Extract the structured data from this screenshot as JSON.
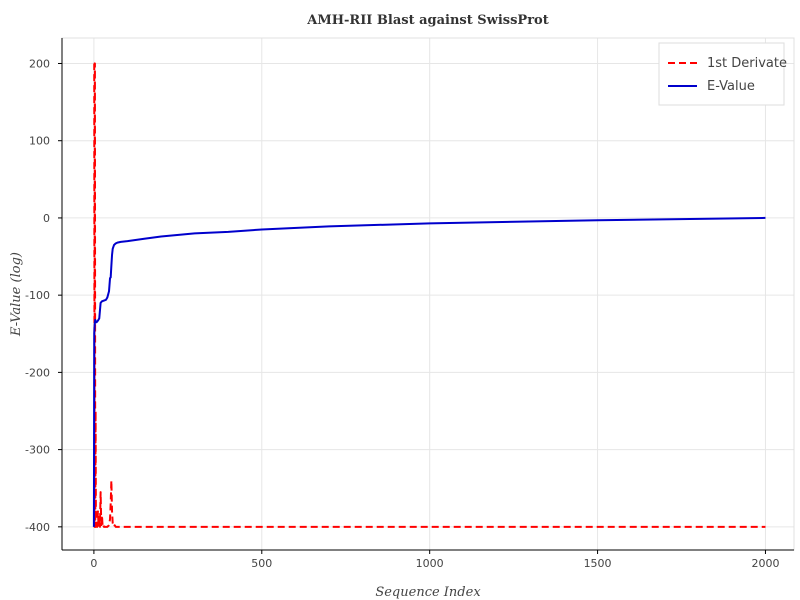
{
  "chart_data": {
    "type": "line",
    "title": "AMH-RII Blast against SwissProt",
    "xlabel": "Sequence Index",
    "ylabel": "E-Value (log)",
    "xlim": [
      -95,
      2085
    ],
    "ylim": [
      -430,
      233
    ],
    "xticks": [
      0,
      500,
      1000,
      1500,
      2000
    ],
    "yticks": [
      -400,
      -300,
      -200,
      -100,
      0,
      100,
      200
    ],
    "grid": true,
    "legend_position": "top-right",
    "series": [
      {
        "name": "1st Derivate",
        "color": "#ff0000",
        "style": "dashed",
        "x": [
          0,
          1,
          2,
          3,
          4,
          5,
          6,
          8,
          10,
          12,
          14,
          16,
          18,
          20,
          22,
          24,
          26,
          28,
          30,
          35,
          40,
          45,
          48,
          50,
          52,
          54,
          56,
          58,
          60,
          62,
          65,
          70,
          80,
          100,
          150,
          200,
          300,
          500,
          1000,
          1500,
          2000
        ],
        "y": [
          200,
          200,
          -400,
          200,
          -400,
          -250,
          -400,
          -395,
          -400,
          -380,
          -400,
          -390,
          -400,
          -355,
          -400,
          -385,
          -400,
          -398,
          -400,
          -400,
          -400,
          -398,
          -390,
          -370,
          -340,
          -380,
          -395,
          -398,
          -400,
          -398,
          -400,
          -400,
          -400,
          -400,
          -400,
          -400,
          -400,
          -400,
          -400,
          -400,
          -400
        ]
      },
      {
        "name": "E-Value",
        "color": "#0000cc",
        "style": "solid",
        "x": [
          0,
          1,
          2,
          3,
          4,
          6,
          8,
          12,
          16,
          20,
          24,
          30,
          36,
          40,
          45,
          48,
          50,
          52,
          54,
          56,
          60,
          65,
          70,
          80,
          100,
          150,
          200,
          300,
          400,
          500,
          700,
          1000,
          1500,
          2000
        ],
        "y": [
          -400,
          -150,
          -140,
          -135,
          -132,
          -135,
          -135,
          -133,
          -130,
          -110,
          -108,
          -107,
          -106,
          -103,
          -95,
          -78,
          -77,
          -62,
          -48,
          -40,
          -35,
          -33,
          -32,
          -31,
          -30,
          -27,
          -24,
          -20,
          -18,
          -15,
          -11,
          -7,
          -3,
          0
        ]
      }
    ]
  }
}
